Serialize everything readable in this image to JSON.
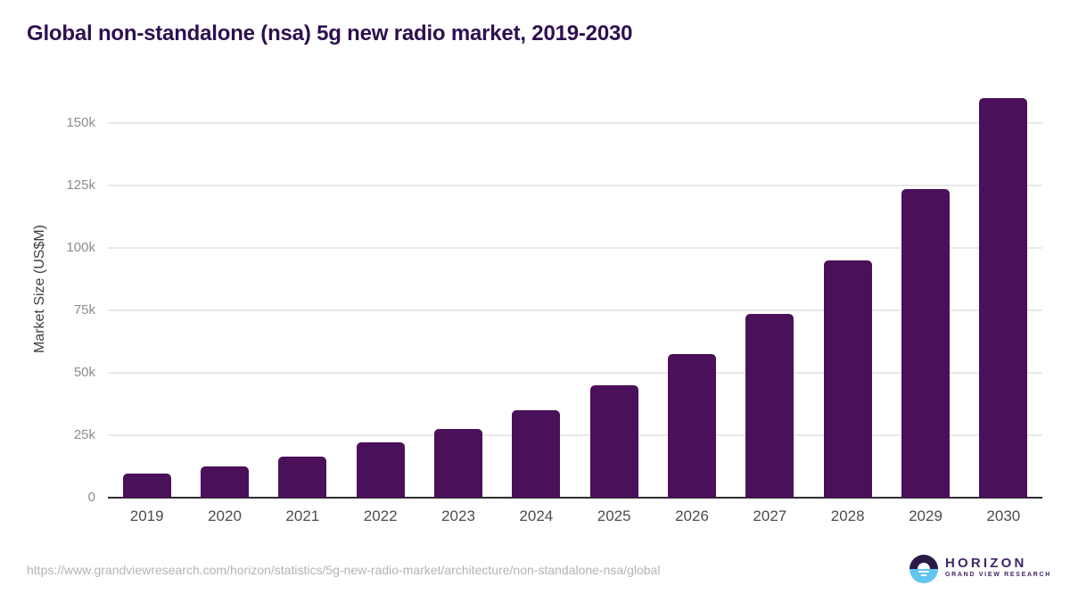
{
  "header": {
    "title": "Global non-standalone (nsa) 5g new radio market, 2019-2030"
  },
  "chart_data": {
    "type": "bar",
    "title": "Global non-standalone (nsa) 5g new radio market, 2019-2030",
    "categories": [
      "2019",
      "2020",
      "2021",
      "2022",
      "2023",
      "2024",
      "2025",
      "2026",
      "2027",
      "2028",
      "2029",
      "2030"
    ],
    "values": [
      9500,
      12500,
      16500,
      22000,
      27500,
      35000,
      45000,
      57500,
      73500,
      95000,
      123500,
      160000
    ],
    "xlabel": "",
    "ylabel": "Market Size (US$M)",
    "ylim": [
      0,
      160000
    ],
    "yticks": {
      "values": [
        0,
        25000,
        50000,
        75000,
        100000,
        125000,
        150000
      ],
      "labels": [
        "0",
        "25k",
        "50k",
        "75k",
        "100k",
        "125k",
        "150k"
      ]
    },
    "grid": "horizontal",
    "legend_position": "none"
  },
  "footer": {
    "source_url": "https://www.grandviewresearch.com/horizon/statistics/5g-new-radio-market/architecture/non-standalone-nsa/global",
    "logo": {
      "wordmark": "HORIZON",
      "subtitle": "GRAND VIEW RESEARCH"
    }
  },
  "colors": {
    "title": "#2e0f50",
    "bar": "#4a1059",
    "axis": "#2e2e2e",
    "grid": "#e9e9eb",
    "tick_label": "#8d8d8d",
    "xtick_label": "#4d4d4d",
    "ylabel": "#3f3f3f",
    "url": "#b4b4b4",
    "logo_purple": "#2b1a48",
    "logo_blue": "#62c4ef",
    "logo_text": "#3f2468"
  }
}
